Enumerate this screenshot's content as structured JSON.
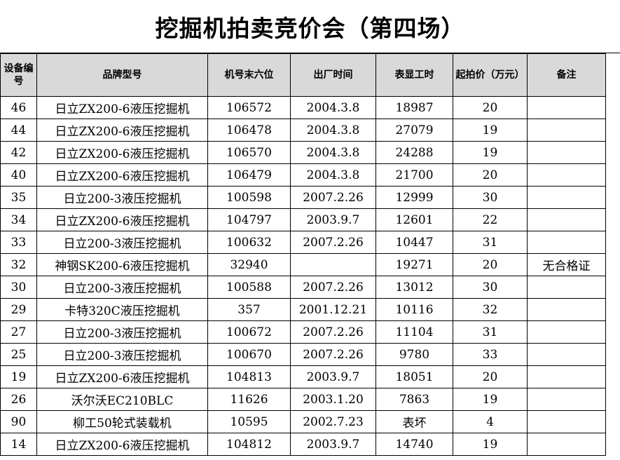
{
  "title": "挖掘机拍卖竞价会（第四场）",
  "columns": [
    "设备编号",
    "品牌型号",
    "机号末六位",
    "出厂时间",
    "表显工时",
    "起拍价（万元）",
    "备注"
  ],
  "rows": [
    {
      "id": "46",
      "model": "日立ZX200-6液压挖掘机",
      "serial": "106572",
      "date": "2004.3.8",
      "hours": "18987",
      "price": "20",
      "note": ""
    },
    {
      "id": "44",
      "model": "日立ZX200-6液压挖掘机",
      "serial": "106478",
      "date": "2004.3.8",
      "hours": "27079",
      "price": "19",
      "note": ""
    },
    {
      "id": "42",
      "model": "日立ZX200-6液压挖掘机",
      "serial": "106570",
      "date": "2004.3.8",
      "hours": "24288",
      "price": "19",
      "note": ""
    },
    {
      "id": "40",
      "model": "日立ZX200-6液压挖掘机",
      "serial": "106479",
      "date": "2004.3.8",
      "hours": "21700",
      "price": "20",
      "note": ""
    },
    {
      "id": "35",
      "model": "日立200-3液压挖掘机",
      "serial": "100598",
      "date": "2007.2.26",
      "hours": "12999",
      "price": "30",
      "note": ""
    },
    {
      "id": "34",
      "model": "日立ZX200-6液压挖掘机",
      "serial": "104797",
      "date": "2003.9.7",
      "hours": "12601",
      "price": "22",
      "note": ""
    },
    {
      "id": "33",
      "model": "日立200-3液压挖掘机",
      "serial": "100632",
      "date": "2007.2.26",
      "hours": "10447",
      "price": "31",
      "note": ""
    },
    {
      "id": "32",
      "model": "神钢SK200-6液压挖掘机",
      "serial": "32940",
      "date": "",
      "hours": "19271",
      "price": "20",
      "note": "无合格证"
    },
    {
      "id": "30",
      "model": "日立200-3液压挖掘机",
      "serial": "100588",
      "date": "2007.2.26",
      "hours": "13012",
      "price": "30",
      "note": ""
    },
    {
      "id": "29",
      "model": "卡特320C液压挖掘机",
      "serial": "357",
      "date": "2001.12.21",
      "hours": "10116",
      "price": "32",
      "note": ""
    },
    {
      "id": "27",
      "model": "日立200-3液压挖掘机",
      "serial": "100672",
      "date": "2007.2.26",
      "hours": "11104",
      "price": "31",
      "note": ""
    },
    {
      "id": "25",
      "model": "日立200-3液压挖掘机",
      "serial": "100670",
      "date": "2007.2.26",
      "hours": "9780",
      "price": "33",
      "note": ""
    },
    {
      "id": "19",
      "model": "日立ZX200-6液压挖掘机",
      "serial": "104813",
      "date": "2003.9.7",
      "hours": "18051",
      "price": "20",
      "note": ""
    },
    {
      "id": "26",
      "model": "沃尔沃EC210BLC",
      "serial": "11626",
      "date": "2003.1.20",
      "hours": "7863",
      "price": "19",
      "note": ""
    },
    {
      "id": "90",
      "model": "柳工50轮式装载机",
      "serial": "10595",
      "date": "2002.7.23",
      "hours": "表坏",
      "price": "4",
      "note": ""
    },
    {
      "id": "14",
      "model": "日立ZX200-6液压挖掘机",
      "serial": "104812",
      "date": "2003.9.7",
      "hours": "14740",
      "price": "19",
      "note": ""
    }
  ]
}
